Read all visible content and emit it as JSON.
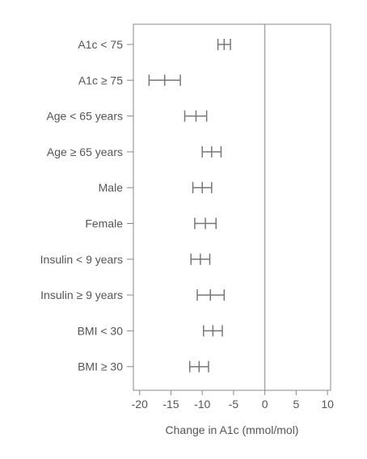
{
  "chart_data": {
    "type": "forest",
    "title": "",
    "xlabel": "Change in A1c (mmol/mol)",
    "ylabel": "",
    "xlim": [
      -21,
      10.5
    ],
    "xticks": [
      -20,
      -15,
      -10,
      -5,
      0,
      5,
      10
    ],
    "xtick_labels": [
      "-20",
      "-15",
      "-10",
      "-5",
      "0",
      "5",
      "10"
    ],
    "reference_line": 0,
    "grid": false,
    "series": [
      {
        "points": [
          {
            "label": "A1c < 75",
            "estimate": -6.5,
            "lower": -7.5,
            "upper": -5.5
          },
          {
            "label": "A1c ≥ 75",
            "estimate": -16.0,
            "lower": -18.5,
            "upper": -13.5
          },
          {
            "label": "Age < 65 years",
            "estimate": -11.0,
            "lower": -12.8,
            "upper": -9.3
          },
          {
            "label": "Age ≥ 65 years",
            "estimate": -8.5,
            "lower": -10.0,
            "upper": -7.0
          },
          {
            "label": "Male",
            "estimate": -10.0,
            "lower": -11.5,
            "upper": -8.5
          },
          {
            "label": "Female",
            "estimate": -9.5,
            "lower": -11.2,
            "upper": -7.8
          },
          {
            "label": "Insulin < 9 years",
            "estimate": -10.3,
            "lower": -11.8,
            "upper": -8.8
          },
          {
            "label": "Insulin ≥ 9 years",
            "estimate": -8.7,
            "lower": -10.8,
            "upper": -6.5
          },
          {
            "label": "BMI < 30",
            "estimate": -8.3,
            "lower": -9.8,
            "upper": -6.8
          },
          {
            "label": "BMI ≥ 30",
            "estimate": -10.5,
            "lower": -12.0,
            "upper": -9.0
          }
        ]
      }
    ],
    "colors": {
      "marks": "#777777",
      "axis": "#888888",
      "text": "#555555"
    }
  }
}
